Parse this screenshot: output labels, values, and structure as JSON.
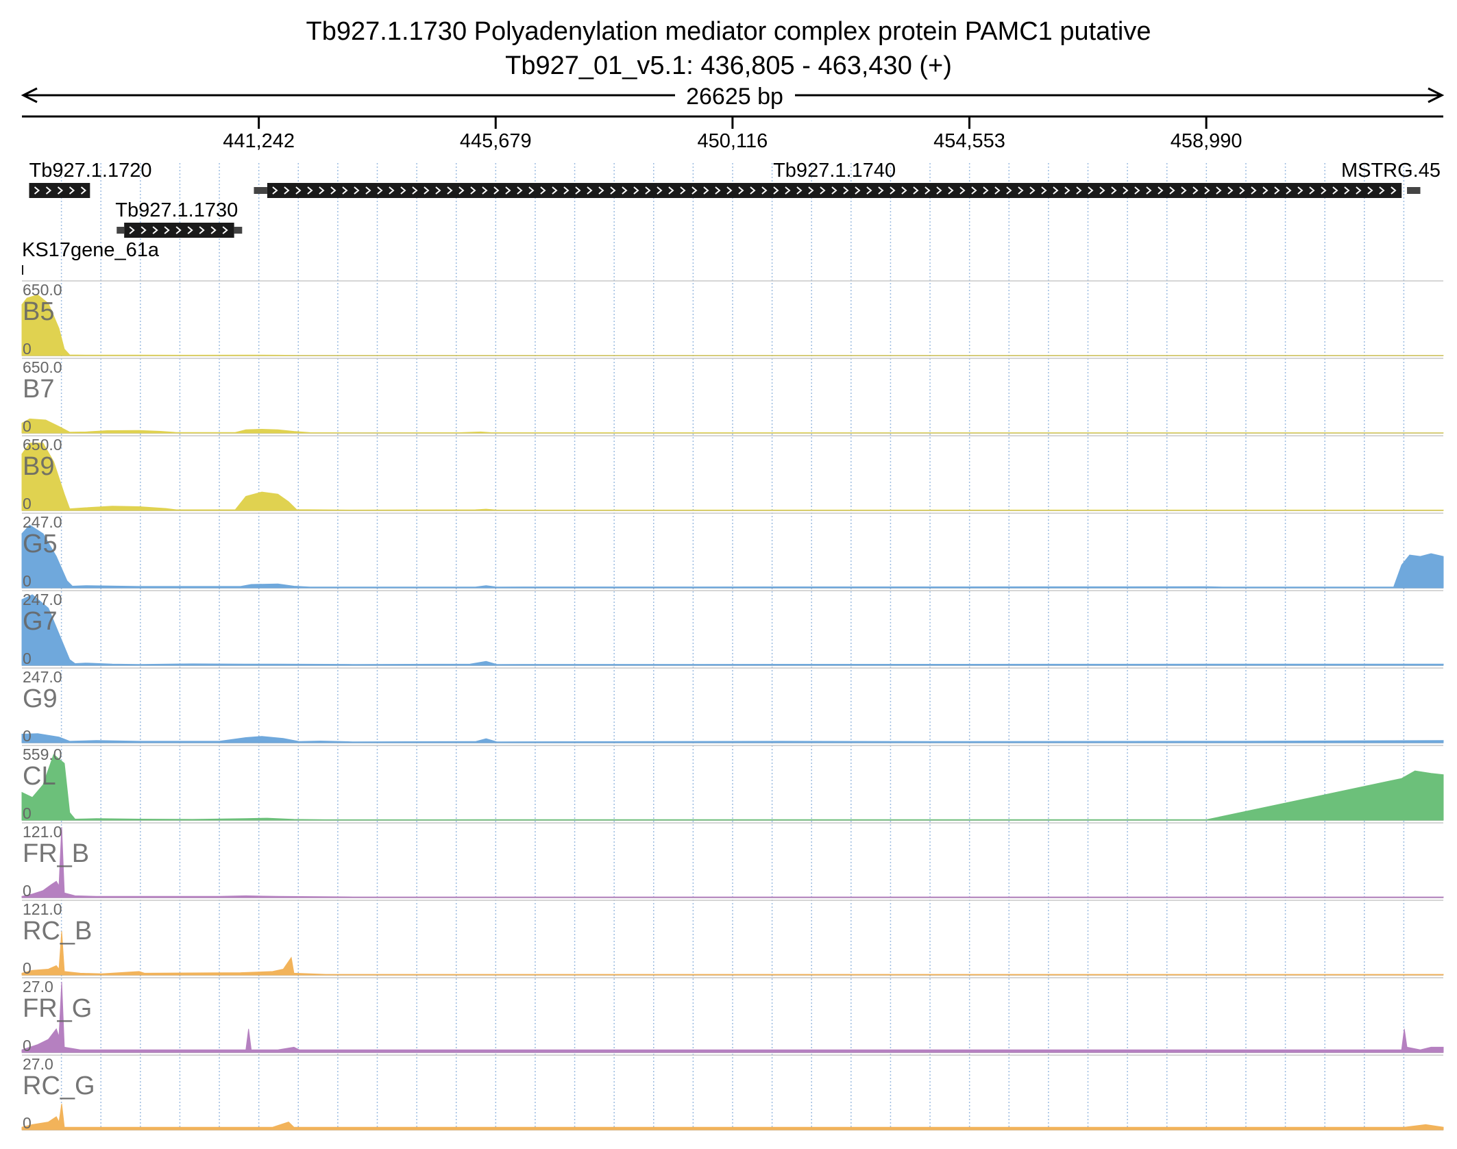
{
  "header": {
    "title": "Tb927.1.1730  Polyadenylation mediator complex protein PAMC1  putative",
    "subtitle": "Tb927_01_v5.1: 436,805 - 463,430 (+)",
    "span_label": "26625 bp"
  },
  "colors": {
    "yellow": "#e0d250",
    "blue": "#6fa8dc",
    "green": "#6cc07a",
    "purple": "#b580c0",
    "orange": "#f2b35a",
    "gene": "#1a1a1a",
    "grid": "#9bbbe0",
    "axis": "#000000",
    "track_label": "#666666"
  },
  "chart_data": {
    "type": "area",
    "title": "Tb927.1.1730  Polyadenylation mediator complex protein PAMC1  putative",
    "subtitle": "Tb927_01_v5.1: 436,805 - 463,430 (+)",
    "xlim": [
      436805,
      463430
    ],
    "x_ticks": [
      441242,
      445679,
      450116,
      454553,
      458990
    ],
    "x_tick_labels": [
      "441,242",
      "445,679",
      "450,116",
      "454,553",
      "458,990"
    ],
    "grid": true,
    "genes": [
      {
        "name": "Tb927.1.1720",
        "start": 436940,
        "end": 438080,
        "row": 0,
        "label_at": "start"
      },
      {
        "name": "Tb927.1.1740",
        "start": 441400,
        "end": 462650,
        "row": 0,
        "utr5": [
          441150,
          441400
        ],
        "utr3": [
          462750,
          463000
        ],
        "label_at": "center"
      },
      {
        "name": "MSTRG.45",
        "start": 462750,
        "end": 463000,
        "row": 0,
        "label_at": "end",
        "draw": false
      },
      {
        "name": "Tb927.1.1730",
        "start": 438720,
        "end": 440780,
        "row": 1,
        "utr5": [
          438580,
          438720
        ],
        "utr3": [
          440780,
          440930
        ],
        "label_at": "start"
      },
      {
        "name": "KS17gene_61a",
        "start": 436805,
        "end": 436830,
        "row": 2,
        "label_at": "start"
      }
    ],
    "series": [
      {
        "name": "B5",
        "max_label": "650.0",
        "min_label": "0",
        "color": "#e0d250",
        "ymax": 650,
        "values": [
          [
            436805,
            470
          ],
          [
            436900,
            530
          ],
          [
            437100,
            560
          ],
          [
            437300,
            480
          ],
          [
            437500,
            250
          ],
          [
            437600,
            60
          ],
          [
            437700,
            6
          ],
          [
            438000,
            5
          ],
          [
            439000,
            5
          ],
          [
            440000,
            4
          ],
          [
            441000,
            5
          ],
          [
            441600,
            4
          ],
          [
            442000,
            2
          ],
          [
            443000,
            1
          ],
          [
            463430,
            1
          ]
        ]
      },
      {
        "name": "B7",
        "max_label": "650.0",
        "min_label": "0",
        "color": "#e0d250",
        "ymax": 650,
        "values": [
          [
            436805,
            90
          ],
          [
            436950,
            130
          ],
          [
            437250,
            120
          ],
          [
            437500,
            60
          ],
          [
            437700,
            8
          ],
          [
            438000,
            10
          ],
          [
            438400,
            22
          ],
          [
            439000,
            24
          ],
          [
            439400,
            16
          ],
          [
            439700,
            5
          ],
          [
            440800,
            5
          ],
          [
            441000,
            30
          ],
          [
            441300,
            35
          ],
          [
            441600,
            30
          ],
          [
            441900,
            15
          ],
          [
            442200,
            4
          ],
          [
            443000,
            2
          ],
          [
            445000,
            3
          ],
          [
            445400,
            10
          ],
          [
            445600,
            3
          ],
          [
            463430,
            2
          ]
        ]
      },
      {
        "name": "B9",
        "max_label": "650.0",
        "min_label": "0",
        "color": "#e0d250",
        "ymax": 650,
        "values": [
          [
            436805,
            520
          ],
          [
            436950,
            620
          ],
          [
            437200,
            620
          ],
          [
            437400,
            450
          ],
          [
            437600,
            150
          ],
          [
            437700,
            15
          ],
          [
            438000,
            25
          ],
          [
            438500,
            40
          ],
          [
            439000,
            35
          ],
          [
            439500,
            18
          ],
          [
            439700,
            6
          ],
          [
            440800,
            6
          ],
          [
            441000,
            130
          ],
          [
            441300,
            170
          ],
          [
            441600,
            150
          ],
          [
            441800,
            80
          ],
          [
            441950,
            8
          ],
          [
            443000,
            4
          ],
          [
            445300,
            6
          ],
          [
            445500,
            12
          ],
          [
            445700,
            4
          ],
          [
            463430,
            4
          ]
        ]
      },
      {
        "name": "G5",
        "max_label": "247.0",
        "min_label": "0",
        "color": "#6fa8dc",
        "ymax": 247,
        "values": [
          [
            436805,
            190
          ],
          [
            436950,
            220
          ],
          [
            437200,
            190
          ],
          [
            437450,
            110
          ],
          [
            437650,
            25
          ],
          [
            437750,
            6
          ],
          [
            438000,
            8
          ],
          [
            439000,
            5
          ],
          [
            440900,
            5
          ],
          [
            441100,
            12
          ],
          [
            441600,
            14
          ],
          [
            441900,
            6
          ],
          [
            442200,
            3
          ],
          [
            445300,
            3
          ],
          [
            445500,
            8
          ],
          [
            445700,
            3
          ],
          [
            459000,
            4
          ],
          [
            459300,
            3
          ],
          [
            462500,
            3
          ],
          [
            462650,
            80
          ],
          [
            462800,
            115
          ],
          [
            463000,
            110
          ],
          [
            463200,
            120
          ],
          [
            463430,
            110
          ]
        ]
      },
      {
        "name": "G7",
        "max_label": "247.0",
        "min_label": "0",
        "color": "#6fa8dc",
        "ymax": 247,
        "values": [
          [
            436805,
            230
          ],
          [
            437000,
            247
          ],
          [
            437300,
            200
          ],
          [
            437500,
            110
          ],
          [
            437700,
            20
          ],
          [
            437800,
            6
          ],
          [
            438000,
            8
          ],
          [
            438500,
            4
          ],
          [
            439000,
            3
          ],
          [
            440000,
            5
          ],
          [
            441000,
            4
          ],
          [
            441600,
            4
          ],
          [
            443000,
            3
          ],
          [
            445200,
            4
          ],
          [
            445500,
            14
          ],
          [
            445700,
            3
          ],
          [
            459000,
            4
          ],
          [
            463430,
            4
          ]
        ]
      },
      {
        "name": "G9",
        "max_label": "247.0",
        "min_label": "0",
        "color": "#6fa8dc",
        "ymax": 247,
        "values": [
          [
            436805,
            30
          ],
          [
            437100,
            32
          ],
          [
            437500,
            20
          ],
          [
            437700,
            5
          ],
          [
            438200,
            8
          ],
          [
            439000,
            5
          ],
          [
            440500,
            5
          ],
          [
            441000,
            18
          ],
          [
            441300,
            22
          ],
          [
            441700,
            15
          ],
          [
            442000,
            4
          ],
          [
            442400,
            6
          ],
          [
            443000,
            3
          ],
          [
            445300,
            4
          ],
          [
            445500,
            14
          ],
          [
            445700,
            3
          ],
          [
            451000,
            5
          ],
          [
            454000,
            4
          ],
          [
            458500,
            5
          ],
          [
            459500,
            5
          ],
          [
            463430,
            8
          ]
        ]
      },
      {
        "name": "CL",
        "max_label": "559.0",
        "min_label": "0",
        "color": "#6cc07a",
        "ymax": 559,
        "values": [
          [
            436805,
            220
          ],
          [
            437000,
            180
          ],
          [
            437200,
            280
          ],
          [
            437400,
            520
          ],
          [
            437600,
            450
          ],
          [
            437700,
            60
          ],
          [
            437800,
            8
          ],
          [
            438200,
            12
          ],
          [
            439000,
            8
          ],
          [
            440000,
            6
          ],
          [
            441000,
            12
          ],
          [
            441400,
            16
          ],
          [
            441900,
            6
          ],
          [
            442500,
            3
          ],
          [
            445500,
            4
          ],
          [
            459000,
            4
          ],
          [
            462650,
            330
          ],
          [
            462900,
            390
          ],
          [
            463200,
            370
          ],
          [
            463430,
            360
          ]
        ]
      },
      {
        "name": "FR_B",
        "max_label": "121.0",
        "min_label": "0",
        "color": "#b580c0",
        "ymax": 121,
        "values": [
          [
            436805,
            2
          ],
          [
            437000,
            6
          ],
          [
            437200,
            12
          ],
          [
            437350,
            22
          ],
          [
            437450,
            28
          ],
          [
            437500,
            20
          ],
          [
            437550,
            121
          ],
          [
            437600,
            8
          ],
          [
            437800,
            3
          ],
          [
            438200,
            2
          ],
          [
            439000,
            2
          ],
          [
            440500,
            2
          ],
          [
            441000,
            3
          ],
          [
            441600,
            2
          ],
          [
            443000,
            1
          ],
          [
            463430,
            1
          ]
        ]
      },
      {
        "name": "RC_B",
        "max_label": "121.0",
        "min_label": "0",
        "color": "#f2b35a",
        "ymax": 121,
        "values": [
          [
            436805,
            3
          ],
          [
            437000,
            8
          ],
          [
            437300,
            10
          ],
          [
            437450,
            16
          ],
          [
            437500,
            10
          ],
          [
            437550,
            75
          ],
          [
            437600,
            6
          ],
          [
            437900,
            3
          ],
          [
            438300,
            2
          ],
          [
            439000,
            6
          ],
          [
            439100,
            3
          ],
          [
            440900,
            4
          ],
          [
            441500,
            6
          ],
          [
            441700,
            10
          ],
          [
            441850,
            30
          ],
          [
            441900,
            3
          ],
          [
            442500,
            1
          ],
          [
            463430,
            1
          ]
        ]
      },
      {
        "name": "FR_G",
        "max_label": "27.0",
        "min_label": "0",
        "color": "#b580c0",
        "ymax": 27,
        "values": [
          [
            436805,
            1
          ],
          [
            437100,
            3
          ],
          [
            437300,
            5
          ],
          [
            437450,
            9
          ],
          [
            437500,
            6
          ],
          [
            437550,
            27
          ],
          [
            437600,
            2
          ],
          [
            437900,
            1
          ],
          [
            441000,
            1
          ],
          [
            441050,
            9
          ],
          [
            441100,
            1
          ],
          [
            441400,
            1
          ],
          [
            441600,
            1
          ],
          [
            441900,
            2
          ],
          [
            442000,
            1
          ],
          [
            462650,
            1
          ],
          [
            462700,
            9
          ],
          [
            462750,
            2
          ],
          [
            463000,
            1
          ],
          [
            463200,
            2
          ],
          [
            463430,
            2
          ]
        ]
      },
      {
        "name": "RC_G",
        "max_label": "27.0",
        "min_label": "0",
        "color": "#f2b35a",
        "ymax": 27,
        "values": [
          [
            436805,
            1
          ],
          [
            437000,
            2
          ],
          [
            437300,
            3
          ],
          [
            437450,
            5
          ],
          [
            437500,
            3
          ],
          [
            437550,
            10
          ],
          [
            437600,
            1
          ],
          [
            438000,
            1
          ],
          [
            441000,
            1
          ],
          [
            441500,
            1
          ],
          [
            441800,
            3
          ],
          [
            441900,
            1
          ],
          [
            462700,
            1
          ],
          [
            463100,
            2
          ],
          [
            463430,
            1
          ]
        ]
      }
    ]
  }
}
